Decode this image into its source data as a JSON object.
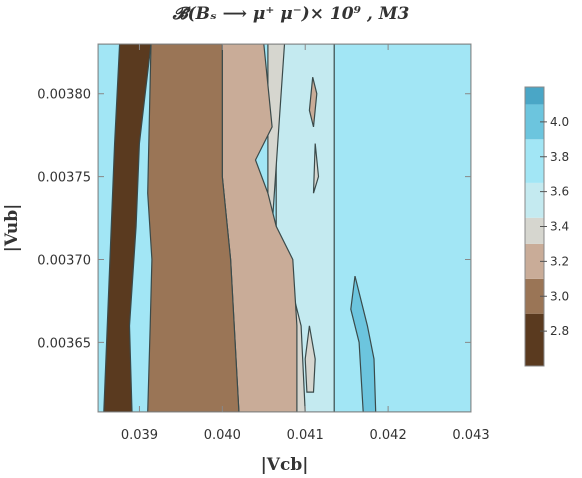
{
  "chart_data": {
    "type": "contour",
    "title": "𝓑̄(Bₛ ⟶ μ⁺ μ⁻)× 10⁹ , M3",
    "xlabel": "|Vcb|",
    "ylabel": "|Vub|",
    "xlim": [
      0.0385,
      0.043
    ],
    "ylim": [
      0.003608,
      0.00383
    ],
    "x_ticks": [
      0.039,
      0.04,
      0.041,
      0.042,
      0.043
    ],
    "x_tick_labels": [
      "0.039",
      "0.040",
      "0.041",
      "0.042",
      "0.043"
    ],
    "y_ticks": [
      0.00365,
      0.0037,
      0.00375,
      0.0038
    ],
    "y_tick_labels": [
      "0.00365",
      "0.00370",
      "0.00375",
      "0.00380"
    ],
    "legend": {
      "placement": "right",
      "ticks": [
        2.8,
        3.0,
        3.2,
        3.4,
        3.6,
        3.8,
        4.0
      ],
      "tick_labels": [
        "2.8",
        "3.0",
        "3.2",
        "3.4",
        "3.6",
        "3.8",
        "4.0"
      ],
      "levels": [
        {
          "range": [
            2.6,
            2.9
          ],
          "color": "#5a3a1f"
        },
        {
          "range": [
            2.9,
            3.1
          ],
          "color": "#9a7556"
        },
        {
          "range": [
            3.1,
            3.3
          ],
          "color": "#c9ac98"
        },
        {
          "range": [
            3.3,
            3.45
          ],
          "color": "#d6d6cf"
        },
        {
          "range": [
            3.45,
            3.65
          ],
          "color": "#c4eaf0"
        },
        {
          "range": [
            3.65,
            3.9
          ],
          "color": "#a2e6f5"
        },
        {
          "range": [
            3.9,
            4.1
          ],
          "color": "#6cc5de"
        },
        {
          "range": [
            4.1,
            4.2
          ],
          "color": "#4aa6c6"
        }
      ]
    },
    "regions": [
      {
        "level": 5,
        "points": [
          [
            0.0385,
            0.00383
          ],
          [
            0.043,
            0.00383
          ],
          [
            0.043,
            0.003608
          ],
          [
            0.0385,
            0.003608
          ]
        ]
      },
      {
        "level": 4,
        "points": [
          [
            0.04065,
            0.00383
          ],
          [
            0.04135,
            0.00383
          ],
          [
            0.04135,
            0.003608
          ],
          [
            0.04065,
            0.003608
          ]
        ]
      },
      {
        "level": 3,
        "points": [
          [
            0.04055,
            0.00383
          ],
          [
            0.04075,
            0.00383
          ],
          [
            0.0406,
            0.00372
          ],
          [
            0.0408,
            0.00369
          ],
          [
            0.04095,
            0.00366
          ],
          [
            0.041,
            0.003608
          ],
          [
            0.04055,
            0.003608
          ]
        ]
      },
      {
        "level": 2,
        "points": [
          [
            0.04,
            0.00383
          ],
          [
            0.0405,
            0.00383
          ],
          [
            0.0406,
            0.00378
          ],
          [
            0.0404,
            0.00376
          ],
          [
            0.04055,
            0.00374
          ],
          [
            0.04065,
            0.00372
          ],
          [
            0.04085,
            0.0037
          ],
          [
            0.0409,
            0.00366
          ],
          [
            0.0409,
            0.003608
          ],
          [
            0.0402,
            0.003608
          ],
          [
            0.0401,
            0.0037
          ],
          [
            0.04,
            0.00375
          ]
        ]
      },
      {
        "level": 1,
        "points": [
          [
            0.03914,
            0.00383
          ],
          [
            0.04,
            0.00383
          ],
          [
            0.04,
            0.00375
          ],
          [
            0.0401,
            0.0037
          ],
          [
            0.0402,
            0.003608
          ],
          [
            0.0391,
            0.003608
          ],
          [
            0.03913,
            0.00366
          ],
          [
            0.03915,
            0.0037
          ],
          [
            0.0391,
            0.00374
          ]
        ]
      },
      {
        "level": 0,
        "points": [
          [
            0.03857,
            0.003608
          ],
          [
            0.03891,
            0.003608
          ],
          [
            0.03888,
            0.00366
          ],
          [
            0.03896,
            0.00372
          ],
          [
            0.039,
            0.00377
          ],
          [
            0.03914,
            0.00383
          ],
          [
            0.03876,
            0.00383
          ],
          [
            0.0387,
            0.00377
          ]
        ]
      },
      {
        "level": 6,
        "points": [
          [
            0.0417,
            0.003608
          ],
          [
            0.04185,
            0.003608
          ],
          [
            0.04183,
            0.00364
          ],
          [
            0.04175,
            0.00366
          ],
          [
            0.0416,
            0.00369
          ],
          [
            0.04155,
            0.00367
          ],
          [
            0.04165,
            0.00365
          ]
        ]
      },
      {
        "level": 3,
        "points": [
          [
            0.04105,
            0.00366
          ],
          [
            0.04112,
            0.00364
          ],
          [
            0.0411,
            0.00362
          ],
          [
            0.04102,
            0.00362
          ],
          [
            0.041,
            0.00364
          ]
        ]
      },
      {
        "level": 2,
        "points": [
          [
            0.04109,
            0.00381
          ],
          [
            0.04114,
            0.0038
          ],
          [
            0.0411,
            0.00378
          ],
          [
            0.04105,
            0.00379
          ]
        ]
      },
      {
        "level": 3,
        "points": [
          [
            0.04112,
            0.00377
          ],
          [
            0.04116,
            0.00375
          ],
          [
            0.0411,
            0.00374
          ]
        ]
      }
    ]
  }
}
